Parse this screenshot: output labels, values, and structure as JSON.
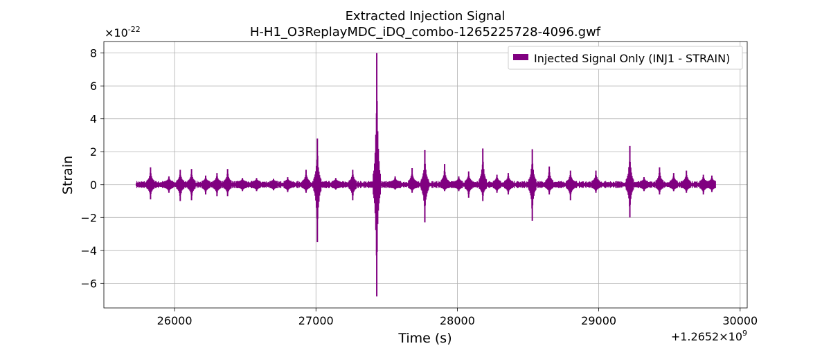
{
  "chart_data": {
    "type": "line",
    "title": "Extracted Injection Signal",
    "subtitle": "H-H1_O3ReplayMDC_iDQ_combo-1265225728-4096.gwf",
    "xlabel": "Time (s)",
    "ylabel": "Strain",
    "x_offset_label": "+1.2652×10^9",
    "y_scale_label": "×10^-22",
    "xlim": [
      25500,
      30050
    ],
    "ylim": [
      -7.5,
      8.7
    ],
    "x_ticks": [
      26000,
      27000,
      28000,
      29000,
      30000
    ],
    "x_tick_labels": [
      "26000",
      "27000",
      "28000",
      "29000",
      "30000"
    ],
    "y_ticks": [
      -6,
      -4,
      -2,
      0,
      2,
      4,
      6,
      8
    ],
    "y_tick_labels": [
      "−6",
      "−4",
      "−2",
      "0",
      "2",
      "4",
      "6",
      "8"
    ],
    "grid": true,
    "legend_position": "top-right",
    "series": [
      {
        "name": "Injected Signal Only (INJ1 - STRAIN)",
        "color": "#800080",
        "x_range": [
          25728,
          29824
        ],
        "baseline_amplitude": 0.2,
        "bursts": [
          {
            "x": 25830,
            "high": 1.05,
            "low": -0.9
          },
          {
            "x": 25960,
            "high": 0.5,
            "low": -0.5
          },
          {
            "x": 26040,
            "high": 0.9,
            "low": -1.0
          },
          {
            "x": 26120,
            "high": 0.95,
            "low": -0.95
          },
          {
            "x": 26220,
            "high": 0.55,
            "low": -0.6
          },
          {
            "x": 26300,
            "high": 0.7,
            "low": -0.7
          },
          {
            "x": 26375,
            "high": 0.95,
            "low": -0.7
          },
          {
            "x": 26480,
            "high": 0.4,
            "low": -0.4
          },
          {
            "x": 26580,
            "high": 0.4,
            "low": -0.4
          },
          {
            "x": 26700,
            "high": 0.35,
            "low": -0.35
          },
          {
            "x": 26800,
            "high": 0.45,
            "low": -0.45
          },
          {
            "x": 26930,
            "high": 0.9,
            "low": -0.5
          },
          {
            "x": 27010,
            "high": 2.8,
            "low": -3.5
          },
          {
            "x": 27140,
            "high": 0.4,
            "low": -0.3
          },
          {
            "x": 27260,
            "high": 0.9,
            "low": -0.95
          },
          {
            "x": 27430,
            "high": 8.0,
            "low": -6.8
          },
          {
            "x": 27560,
            "high": 0.5,
            "low": -0.3
          },
          {
            "x": 27680,
            "high": 1.0,
            "low": -0.5
          },
          {
            "x": 27770,
            "high": 2.1,
            "low": -2.3
          },
          {
            "x": 27910,
            "high": 1.25,
            "low": -0.4
          },
          {
            "x": 28010,
            "high": 0.5,
            "low": -0.4
          },
          {
            "x": 28080,
            "high": 0.8,
            "low": -0.8
          },
          {
            "x": 28180,
            "high": 2.2,
            "low": -1.0
          },
          {
            "x": 28280,
            "high": 0.6,
            "low": -0.5
          },
          {
            "x": 28360,
            "high": 0.7,
            "low": -0.6
          },
          {
            "x": 28530,
            "high": 2.15,
            "low": -2.2
          },
          {
            "x": 28650,
            "high": 1.1,
            "low": -0.6
          },
          {
            "x": 28800,
            "high": 0.85,
            "low": -0.95
          },
          {
            "x": 28980,
            "high": 0.85,
            "low": -0.5
          },
          {
            "x": 29220,
            "high": 2.35,
            "low": -2.0
          },
          {
            "x": 29320,
            "high": 0.45,
            "low": -0.4
          },
          {
            "x": 29430,
            "high": 1.05,
            "low": -0.6
          },
          {
            "x": 29530,
            "high": 0.7,
            "low": -0.4
          },
          {
            "x": 29620,
            "high": 0.85,
            "low": -0.5
          },
          {
            "x": 29740,
            "high": 0.6,
            "low": -0.6
          },
          {
            "x": 29800,
            "high": 0.55,
            "low": -0.45
          }
        ]
      }
    ]
  }
}
